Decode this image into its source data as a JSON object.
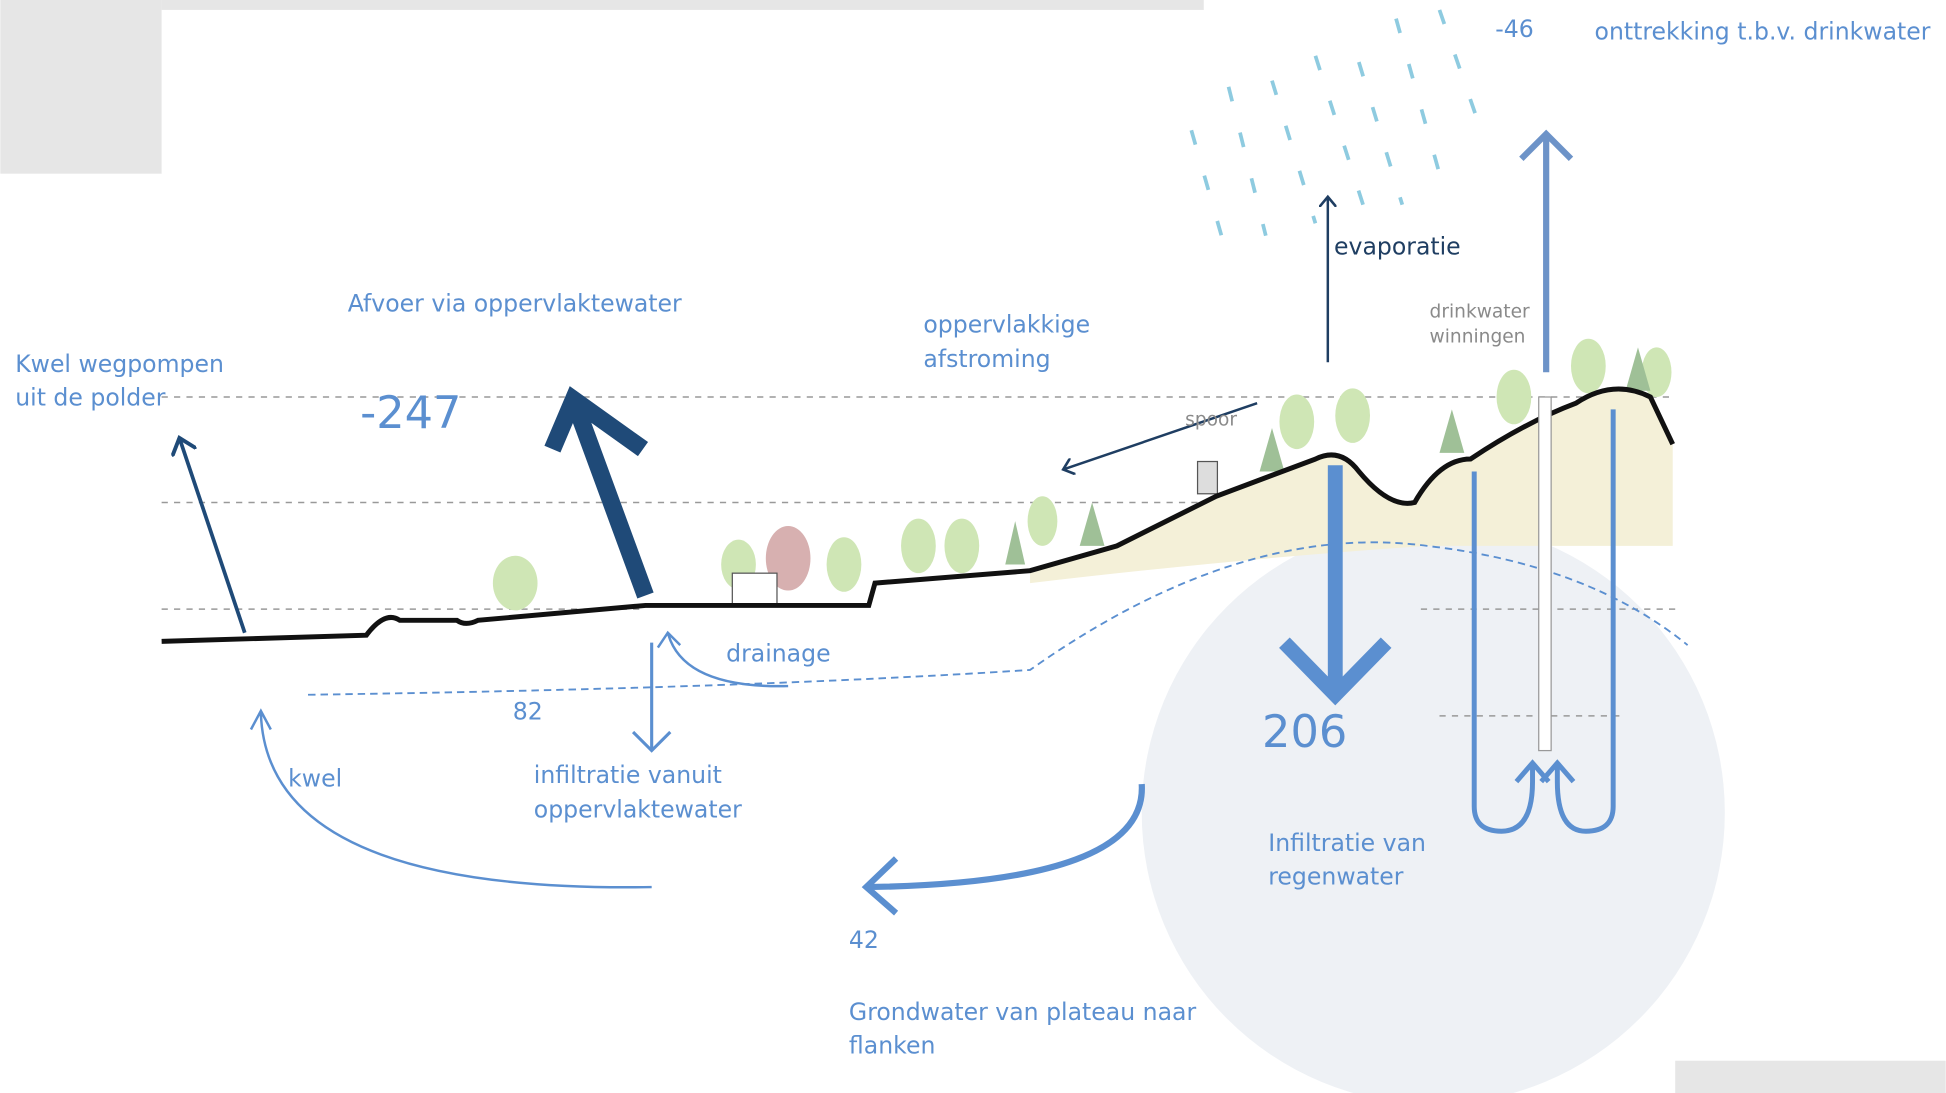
{
  "labels": {
    "extraction_value": -46,
    "extraction": "onttrekking t.b.v. drinkwater",
    "evaporation": "evaporatie",
    "wells": [
      "drinkwater",
      "winningen"
    ],
    "discharge": "Afvoer via oppervlaktewater",
    "discharge_value": -247,
    "runoff": [
      "oppervlakkige",
      "afstroming"
    ],
    "pumping": [
      "Kwel wegpompen",
      "uit de polder"
    ],
    "railway": "spoor",
    "drainage": "drainage",
    "infiltration_surface_value": 82,
    "infiltration_surface": [
      "infiltratie vanuit",
      "oppervlaktewater"
    ],
    "seepage": "kwel",
    "infiltration_rain_value": 206,
    "infiltration_rain": [
      "Infiltratie van",
      "regenwater"
    ],
    "groundwater_value": 42,
    "groundwater": [
      "Grondwater van plateau naar",
      "flanken"
    ]
  }
}
